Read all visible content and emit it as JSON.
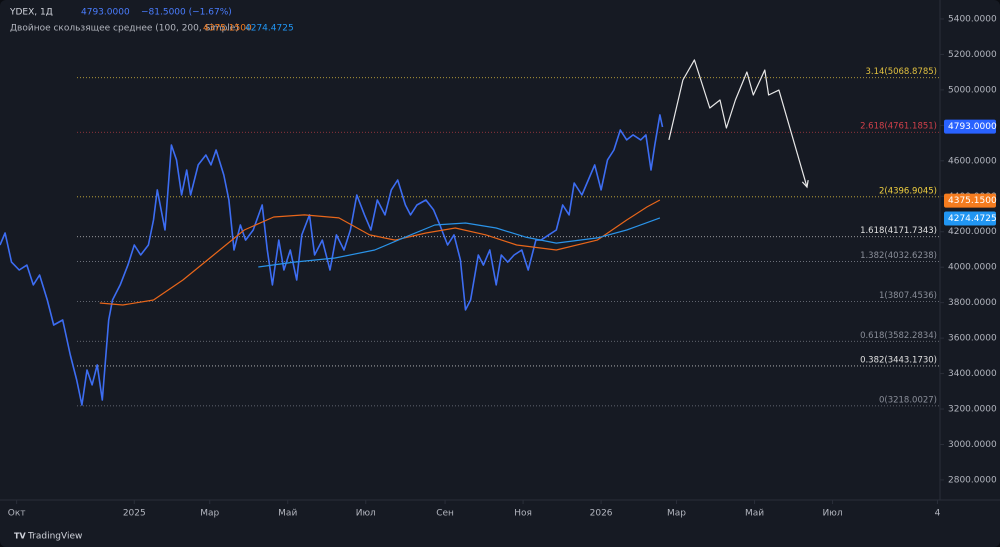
{
  "chart_data": {
    "type": "line",
    "title": "YDEX, 1Д",
    "price": "4793.0000",
    "change": "−81.5000 (−1.67%)",
    "indicator": "Двойное скользящее среднее (100, 200, Simple)",
    "brand": "TradingView",
    "xlim": [
      -13,
      722
    ],
    "ylim": [
      2687,
      5507
    ],
    "xticks": [
      {
        "value": 0,
        "label": "Окт"
      },
      {
        "value": 92,
        "label": "2025"
      },
      {
        "value": 151,
        "label": "Мар"
      },
      {
        "value": 212,
        "label": "Май"
      },
      {
        "value": 273,
        "label": "Июл"
      },
      {
        "value": 335,
        "label": "Сен"
      },
      {
        "value": 396,
        "label": "Ноя"
      },
      {
        "value": 457,
        "label": "2026"
      },
      {
        "value": 516,
        "label": "Мар"
      },
      {
        "value": 577,
        "label": "Май"
      },
      {
        "value": 638,
        "label": "Июл"
      },
      {
        "value": 720,
        "label": "4"
      }
    ],
    "yticks": [
      {
        "value": 2800,
        "label": "2800.0000"
      },
      {
        "value": 3000,
        "label": "3000.0000"
      },
      {
        "value": 3200,
        "label": "3200.0000"
      },
      {
        "value": 3400,
        "label": "3400.0000"
      },
      {
        "value": 3600,
        "label": "3600.0000"
      },
      {
        "value": 3800,
        "label": "3800.0000"
      },
      {
        "value": 4000,
        "label": "4000.0000"
      },
      {
        "value": 4200,
        "label": "4200.0000"
      },
      {
        "value": 4400,
        "label": "4400.0000"
      },
      {
        "value": 4600,
        "label": "4600.0000"
      },
      {
        "value": 4800,
        "label": "4800.0000"
      },
      {
        "value": 5000,
        "label": "5000.0000"
      },
      {
        "value": 5200,
        "label": "5200.0000"
      },
      {
        "value": 5400,
        "label": "5400.0000"
      }
    ],
    "series": [
      {
        "color": "#3d6df2",
        "width": 1.6,
        "x": [
          -13,
          -9,
          -4,
          2,
          8,
          13,
          18,
          24,
          29,
          36,
          42,
          47,
          51,
          55,
          59,
          63,
          67,
          72,
          75,
          81,
          87,
          92,
          97,
          103,
          107,
          110,
          116,
          121,
          125,
          129,
          133,
          136,
          142,
          148,
          152,
          156,
          162,
          166,
          170,
          175,
          179,
          185,
          192,
          196,
          200,
          205,
          209,
          214,
          219,
          223,
          229,
          233,
          239,
          245,
          250,
          256,
          261,
          266,
          272,
          277,
          282,
          288,
          293,
          298,
          304,
          308,
          313,
          320,
          326,
          331,
          337,
          342,
          347,
          351,
          355,
          361,
          365,
          370,
          375,
          379,
          384,
          389,
          395,
          400,
          406,
          410,
          416,
          422,
          427,
          432,
          436,
          442,
          447,
          452,
          457,
          462,
          467,
          472,
          477,
          482,
          488,
          492,
          496,
          499,
          503,
          505
        ],
        "values": [
          4125,
          4193,
          4029,
          3984,
          4012,
          3900,
          3956,
          3815,
          3674,
          3702,
          3505,
          3364,
          3223,
          3420,
          3336,
          3449,
          3251,
          3702,
          3815,
          3900,
          4012,
          4125,
          4069,
          4125,
          4266,
          4436,
          4210,
          4689,
          4605,
          4407,
          4548,
          4407,
          4577,
          4633,
          4577,
          4661,
          4520,
          4379,
          4097,
          4238,
          4153,
          4210,
          4351,
          4097,
          3900,
          4153,
          3984,
          4097,
          3928,
          4182,
          4295,
          4069,
          4153,
          3984,
          4182,
          4097,
          4210,
          4407,
          4295,
          4210,
          4379,
          4295,
          4436,
          4492,
          4351,
          4295,
          4351,
          4379,
          4323,
          4238,
          4125,
          4182,
          4041,
          3759,
          3815,
          4069,
          4012,
          4097,
          3900,
          4069,
          4029,
          4069,
          4097,
          3984,
          4153,
          4153,
          4182,
          4210,
          4351,
          4295,
          4475,
          4407,
          4492,
          4577,
          4436,
          4605,
          4661,
          4774,
          4718,
          4746,
          4718,
          4746,
          4548,
          4689,
          4859,
          4791
        ]
      },
      {
        "color": "#e8661a",
        "width": 1.2,
        "x": [
          65,
          83,
          107,
          130,
          154,
          178,
          201,
          225,
          252,
          276,
          296,
          320,
          343,
          367,
          391,
          422,
          454,
          477,
          493,
          503
        ],
        "values": [
          3798,
          3787,
          3815,
          3928,
          4069,
          4210,
          4283,
          4295,
          4278,
          4182,
          4153,
          4193,
          4221,
          4182,
          4125,
          4097,
          4153,
          4266,
          4340,
          4379
        ]
      },
      {
        "color": "#2a93e8",
        "width": 1.2,
        "x": [
          189,
          217,
          249,
          280,
          304,
          327,
          351,
          375,
          398,
          422,
          454,
          477,
          503
        ],
        "values": [
          4001,
          4029,
          4052,
          4097,
          4170,
          4238,
          4249,
          4221,
          4170,
          4136,
          4165,
          4210,
          4278
        ]
      },
      {
        "color": "#e8e8e8",
        "width": 1.2,
        "arrow": true,
        "x": [
          510,
          521,
          530,
          542,
          550,
          555,
          562,
          571,
          576,
          585,
          588,
          596,
          618
        ],
        "values": [
          4718,
          5056,
          5169,
          4898,
          4943,
          4785,
          4943,
          5101,
          4971,
          5112,
          4971,
          4999,
          4452
        ]
      }
    ],
    "fib_levels": [
      {
        "value": 5068.8785,
        "label": "3.14(5068.8785)",
        "color": "#e0c040"
      },
      {
        "value": 4761.1851,
        "label": "2.618(4761.1851)",
        "color": "#d0404a"
      },
      {
        "value": 4396.9045,
        "label": "2(4396.9045)",
        "color": "#f0d040"
      },
      {
        "value": 4171.7343,
        "label": "1.618(4171.7343)",
        "color": "#e0e0e0"
      },
      {
        "value": 4032.6238,
        "label": "1.382(4032.6238)",
        "color": "#8a8e99"
      },
      {
        "value": 3807.4536,
        "label": "1(3807.4536)",
        "color": "#8a8e99"
      },
      {
        "value": 3582.2834,
        "label": "0.618(3582.2834)",
        "color": "#8a8e99"
      },
      {
        "value": 3443.173,
        "label": "0.382(3443.1730)",
        "color": "#e0e0e0"
      },
      {
        "value": 3218.0027,
        "label": "0(3218.0027)",
        "color": "#8a8e99"
      }
    ],
    "badges": [
      {
        "value": 4793,
        "label": "4793.0000",
        "color": "#2962ff"
      },
      {
        "value": 4375.15,
        "label": "4375.1500",
        "color": "#f57c1f"
      },
      {
        "value": 4274.4725,
        "label": "4274.4725",
        "color": "#2196f3"
      }
    ]
  }
}
